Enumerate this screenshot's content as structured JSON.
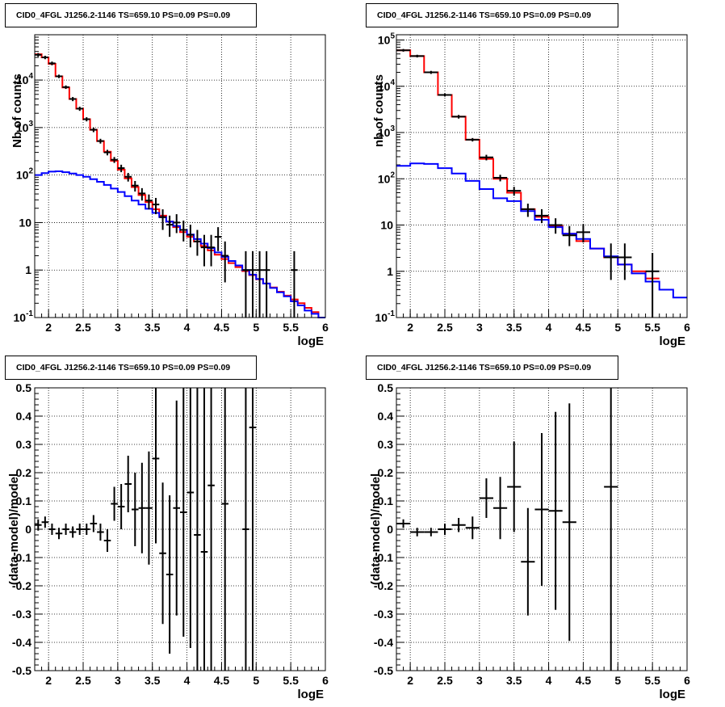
{
  "chart_data": [
    {
      "type": "line",
      "panel": "top-left",
      "title": "CID0_4FGL J1256.2-1146 TS=659.10 PS=0.09 PS=0.09",
      "xlabel": "logE",
      "ylabel": "Nb of counts",
      "xlim": [
        1.8,
        6.0
      ],
      "ylim": [
        0.1,
        90000
      ],
      "yscale": "log",
      "grid": true,
      "xticks": [
        "2",
        "2.5",
        "3",
        "3.5",
        "4",
        "4.5",
        "5",
        "5.5",
        "6"
      ],
      "yticks": [
        {
          "base": "10",
          "exp": "-1",
          "value": 0.1
        },
        {
          "base": "1",
          "exp": "",
          "value": 1
        },
        {
          "base": "10",
          "exp": "",
          "value": 10
        },
        {
          "base": "10",
          "exp": "2",
          "value": 100
        },
        {
          "base": "10",
          "exp": "3",
          "value": 1000
        },
        {
          "base": "10",
          "exp": "4",
          "value": 10000
        }
      ],
      "series": [
        {
          "color": "#ff0000",
          "step": true,
          "edges": [
            1.8,
            1.9,
            2.0,
            2.1,
            2.2,
            2.3,
            2.4,
            2.5,
            2.6,
            2.7,
            2.8,
            2.9,
            3.0,
            3.1,
            3.2,
            3.3,
            3.4,
            3.5,
            3.6,
            3.7,
            3.8,
            3.9,
            4.0,
            4.1,
            4.2,
            4.3,
            4.4,
            4.5,
            4.6,
            4.7,
            4.8,
            4.9,
            5.0,
            5.1,
            5.2,
            5.3,
            5.4,
            5.5,
            5.6,
            5.7,
            5.8,
            5.9,
            6.0
          ],
          "values": [
            35000,
            30000,
            22000,
            12000,
            7000,
            4000,
            2500,
            1500,
            900,
            520,
            310,
            200,
            130,
            85,
            56,
            38,
            27,
            19,
            14,
            10.5,
            8,
            6.3,
            5,
            4,
            3.2,
            2.6,
            2.1,
            1.7,
            1.4,
            1.15,
            0.95,
            0.78,
            0.64,
            0.52,
            0.43,
            0.35,
            0.29,
            0.24,
            0.2,
            0.16,
            0.13,
            0.1
          ]
        },
        {
          "color": "#0000ff",
          "step": true,
          "edges": [
            1.8,
            1.9,
            2.0,
            2.1,
            2.2,
            2.3,
            2.4,
            2.5,
            2.6,
            2.7,
            2.8,
            2.9,
            3.0,
            3.1,
            3.2,
            3.3,
            3.4,
            3.5,
            3.6,
            3.7,
            3.8,
            3.9,
            4.0,
            4.1,
            4.2,
            4.3,
            4.4,
            4.5,
            4.6,
            4.7,
            4.8,
            4.9,
            5.0,
            5.1,
            5.2,
            5.3,
            5.4,
            5.5,
            5.6,
            5.7,
            5.8,
            5.9,
            6.0
          ],
          "values": [
            100,
            110,
            118,
            120,
            115,
            108,
            100,
            92,
            82,
            72,
            62,
            52,
            44,
            36,
            29,
            24,
            19.5,
            16,
            13,
            10.5,
            8.5,
            7,
            5.6,
            4.5,
            3.6,
            2.9,
            2.35,
            1.9,
            1.55,
            1.25,
            1.0,
            0.8,
            0.65,
            0.52,
            0.42,
            0.34,
            0.28,
            0.22,
            0.18,
            0.14,
            0.12,
            0.1
          ]
        }
      ],
      "points": [
        {
          "x": 1.85,
          "y": 34000,
          "lo": 31000,
          "hi": 37000
        },
        {
          "x": 1.95,
          "y": 30000,
          "lo": 27500,
          "hi": 32500
        },
        {
          "x": 2.05,
          "y": 22500,
          "lo": 20500,
          "hi": 24500
        },
        {
          "x": 2.15,
          "y": 12000,
          "lo": 11000,
          "hi": 13000
        },
        {
          "x": 2.25,
          "y": 7100,
          "lo": 6500,
          "hi": 7700
        },
        {
          "x": 2.35,
          "y": 4000,
          "lo": 3600,
          "hi": 4400
        },
        {
          "x": 2.45,
          "y": 2500,
          "lo": 2250,
          "hi": 2750
        },
        {
          "x": 2.55,
          "y": 1500,
          "lo": 1350,
          "hi": 1650
        },
        {
          "x": 2.65,
          "y": 900,
          "lo": 800,
          "hi": 1000
        },
        {
          "x": 2.75,
          "y": 520,
          "lo": 460,
          "hi": 580
        },
        {
          "x": 2.85,
          "y": 300,
          "lo": 260,
          "hi": 340
        },
        {
          "x": 2.95,
          "y": 210,
          "lo": 180,
          "hi": 240
        },
        {
          "x": 3.05,
          "y": 140,
          "lo": 115,
          "hi": 165
        },
        {
          "x": 3.15,
          "y": 92,
          "lo": 73,
          "hi": 111
        },
        {
          "x": 3.25,
          "y": 60,
          "lo": 45,
          "hi": 75
        },
        {
          "x": 3.35,
          "y": 41,
          "lo": 29,
          "hi": 53
        },
        {
          "x": 3.45,
          "y": 29,
          "lo": 19,
          "hi": 39
        },
        {
          "x": 3.55,
          "y": 24,
          "lo": 15,
          "hi": 33
        },
        {
          "x": 3.65,
          "y": 13,
          "lo": 7,
          "hi": 19
        },
        {
          "x": 3.75,
          "y": 9,
          "lo": 5,
          "hi": 14
        },
        {
          "x": 3.85,
          "y": 10,
          "lo": 6,
          "hi": 15
        },
        {
          "x": 3.95,
          "y": 7,
          "lo": 4,
          "hi": 11
        },
        {
          "x": 4.05,
          "y": 5.5,
          "lo": 3,
          "hi": 9
        },
        {
          "x": 4.15,
          "y": 4,
          "lo": 2,
          "hi": 7
        },
        {
          "x": 4.25,
          "y": 3,
          "lo": 1.2,
          "hi": 5.5
        },
        {
          "x": 4.35,
          "y": 3,
          "lo": 1.2,
          "hi": 5.5
        },
        {
          "x": 4.45,
          "y": 5,
          "lo": 2.5,
          "hi": 8
        },
        {
          "x": 4.55,
          "y": 2,
          "lo": 0.55,
          "hi": 4
        },
        {
          "x": 4.85,
          "y": 1,
          "lo": 0.1,
          "hi": 2.5
        },
        {
          "x": 4.95,
          "y": 1,
          "lo": 0.1,
          "hi": 2.5
        },
        {
          "x": 5.05,
          "y": 1,
          "lo": 0.1,
          "hi": 2.5
        },
        {
          "x": 5.15,
          "y": 1,
          "lo": 0.1,
          "hi": 2.5
        },
        {
          "x": 5.55,
          "y": 1,
          "lo": 0.1,
          "hi": 2.5
        }
      ]
    },
    {
      "type": "line",
      "panel": "top-right",
      "title": "CID0_4FGL J1256.2-1146 TS=659.10 PS=0.09 PS=0.09",
      "xlabel": "logE",
      "ylabel": "nb of counts",
      "xlim": [
        1.8,
        6.0
      ],
      "ylim": [
        0.1,
        130000
      ],
      "yscale": "log",
      "grid": true,
      "xticks": [
        "2",
        "2.5",
        "3",
        "3.5",
        "4",
        "4.5",
        "5",
        "5.5",
        "6"
      ],
      "yticks": [
        {
          "base": "10",
          "exp": "-1",
          "value": 0.1
        },
        {
          "base": "1",
          "exp": "",
          "value": 1
        },
        {
          "base": "10",
          "exp": "",
          "value": 10
        },
        {
          "base": "10",
          "exp": "2",
          "value": 100
        },
        {
          "base": "10",
          "exp": "3",
          "value": 1000
        },
        {
          "base": "10",
          "exp": "4",
          "value": 10000
        },
        {
          "base": "10",
          "exp": "5",
          "value": 100000
        }
      ],
      "series": [
        {
          "color": "#ff0000",
          "step": true,
          "edges": [
            1.8,
            2.0,
            2.2,
            2.4,
            2.6,
            2.8,
            3.0,
            3.2,
            3.4,
            3.6,
            3.8,
            4.0,
            4.2,
            4.4,
            4.6,
            4.8,
            5.0,
            5.2,
            5.4,
            5.6,
            5.8,
            6.0
          ],
          "values": [
            60000,
            45000,
            20000,
            6500,
            2200,
            700,
            270,
            100,
            50,
            22,
            15,
            9.5,
            6.5,
            4.5,
            3.1,
            2.0,
            1.4,
            1.0,
            0.7,
            0.45,
            0.25
          ],
          "stop": 5.6
        },
        {
          "color": "#0000ff",
          "step": true,
          "edges": [
            1.8,
            2.0,
            2.2,
            2.4,
            2.6,
            2.8,
            3.0,
            3.2,
            3.4,
            3.6,
            3.8,
            4.0,
            4.2,
            4.4,
            4.6,
            4.8,
            5.0,
            5.2,
            5.4,
            5.6,
            5.8,
            6.0
          ],
          "values": [
            190,
            215,
            210,
            170,
            130,
            90,
            60,
            38,
            33,
            20,
            13,
            9,
            6.5,
            5,
            3.1,
            2.1,
            1.4,
            0.9,
            0.6,
            0.4,
            0.27
          ]
        }
      ],
      "points": [
        {
          "x": 1.9,
          "y": 60000,
          "lo": 56000,
          "hi": 64000
        },
        {
          "x": 2.1,
          "y": 45000,
          "lo": 42000,
          "hi": 48000
        },
        {
          "x": 2.3,
          "y": 20000,
          "lo": 18500,
          "hi": 21500
        },
        {
          "x": 2.5,
          "y": 6500,
          "lo": 6000,
          "hi": 7000
        },
        {
          "x": 2.7,
          "y": 2200,
          "lo": 2000,
          "hi": 2400
        },
        {
          "x": 2.9,
          "y": 700,
          "lo": 640,
          "hi": 760
        },
        {
          "x": 3.1,
          "y": 290,
          "lo": 250,
          "hi": 330
        },
        {
          "x": 3.3,
          "y": 105,
          "lo": 88,
          "hi": 122
        },
        {
          "x": 3.5,
          "y": 55,
          "lo": 43,
          "hi": 67
        },
        {
          "x": 3.7,
          "y": 22,
          "lo": 15,
          "hi": 29
        },
        {
          "x": 3.9,
          "y": 16,
          "lo": 11,
          "hi": 22
        },
        {
          "x": 4.1,
          "y": 10,
          "lo": 6.5,
          "hi": 14
        },
        {
          "x": 4.3,
          "y": 6,
          "lo": 3.5,
          "hi": 9.5
        },
        {
          "x": 4.5,
          "y": 7,
          "lo": 4.2,
          "hi": 10.5
        },
        {
          "x": 4.9,
          "y": 2,
          "lo": 0.65,
          "hi": 4
        },
        {
          "x": 5.1,
          "y": 2,
          "lo": 0.65,
          "hi": 4
        },
        {
          "x": 5.5,
          "y": 1,
          "lo": 0.1,
          "hi": 2.5
        }
      ]
    },
    {
      "type": "scatter",
      "panel": "bottom-left",
      "title": "CID0_4FGL J1256.2-1146 TS=659.10 PS=0.09 PS=0.09",
      "xlabel": "logE",
      "ylabel": "(data-model)/model",
      "xlim": [
        1.8,
        6.0
      ],
      "ylim": [
        -0.5,
        0.5
      ],
      "grid": true,
      "xticks": [
        "2",
        "2.5",
        "3",
        "3.5",
        "4",
        "4.5",
        "5",
        "5.5",
        "6"
      ],
      "yticks": [
        "-0.5",
        "-0.4",
        "-0.3",
        "-0.2",
        "-0.1",
        "0",
        "0.1",
        "0.2",
        "0.3",
        "0.4",
        "0.5"
      ],
      "binwidth": 0.1,
      "points": [
        {
          "x": 1.85,
          "y": 0.015,
          "err": 0.02
        },
        {
          "x": 1.95,
          "y": 0.025,
          "err": 0.02
        },
        {
          "x": 2.05,
          "y": 0.0,
          "err": 0.02
        },
        {
          "x": 2.15,
          "y": -0.015,
          "err": 0.02
        },
        {
          "x": 2.25,
          "y": 0.0,
          "err": 0.02
        },
        {
          "x": 2.35,
          "y": -0.01,
          "err": 0.02
        },
        {
          "x": 2.45,
          "y": 0.0,
          "err": 0.02
        },
        {
          "x": 2.55,
          "y": 0.0,
          "err": 0.02
        },
        {
          "x": 2.65,
          "y": 0.02,
          "err": 0.03
        },
        {
          "x": 2.75,
          "y": -0.01,
          "err": 0.03
        },
        {
          "x": 2.85,
          "y": -0.04,
          "err": 0.04
        },
        {
          "x": 2.95,
          "y": 0.09,
          "err": 0.06
        },
        {
          "x": 3.05,
          "y": 0.08,
          "err": 0.08
        },
        {
          "x": 3.15,
          "y": 0.16,
          "err": 0.1
        },
        {
          "x": 3.25,
          "y": 0.07,
          "err": 0.13
        },
        {
          "x": 3.35,
          "y": 0.075,
          "err": 0.16
        },
        {
          "x": 3.45,
          "y": 0.075,
          "err": 0.2
        },
        {
          "x": 3.55,
          "y": 0.25,
          "err": 0.3
        },
        {
          "x": 3.65,
          "y": -0.085,
          "err": 0.25
        },
        {
          "x": 3.75,
          "y": -0.16,
          "err": 0.28
        },
        {
          "x": 3.85,
          "y": 0.075,
          "err": 0.38
        },
        {
          "x": 3.95,
          "y": 0.06,
          "err": 0.44
        },
        {
          "x": 4.05,
          "y": 0.13,
          "err": 0.55
        },
        {
          "x": 4.15,
          "y": -0.02,
          "err": 0.6
        },
        {
          "x": 4.25,
          "y": -0.08,
          "err": 0.6
        },
        {
          "x": 4.35,
          "y": 0.155,
          "err": 0.7
        },
        {
          "x": 4.55,
          "y": 0.09,
          "err": 0.9
        },
        {
          "x": 4.85,
          "y": 0.0,
          "err": 1.0
        },
        {
          "x": 4.95,
          "y": 0.36,
          "err": 1.0
        }
      ]
    },
    {
      "type": "scatter",
      "panel": "bottom-right",
      "title": "CID0_4FGL J1256.2-1146 TS=659.10 PS=0.09 PS=0.09",
      "xlabel": "logE",
      "ylabel": "(data-model)/model",
      "xlim": [
        1.8,
        6.0
      ],
      "ylim": [
        -0.5,
        0.5
      ],
      "grid": true,
      "xticks": [
        "2",
        "2.5",
        "3",
        "3.5",
        "4",
        "4.5",
        "5",
        "5.5",
        "6"
      ],
      "yticks": [
        "-0.5",
        "-0.4",
        "-0.3",
        "-0.2",
        "-0.1",
        "0",
        "0.1",
        "0.2",
        "0.3",
        "0.4",
        "0.5"
      ],
      "binwidth": 0.2,
      "points": [
        {
          "x": 1.9,
          "y": 0.02,
          "err": 0.015
        },
        {
          "x": 2.1,
          "y": -0.01,
          "err": 0.015
        },
        {
          "x": 2.3,
          "y": -0.01,
          "err": 0.015
        },
        {
          "x": 2.5,
          "y": 0.0,
          "err": 0.02
        },
        {
          "x": 2.7,
          "y": 0.015,
          "err": 0.025
        },
        {
          "x": 2.9,
          "y": 0.005,
          "err": 0.04
        },
        {
          "x": 3.1,
          "y": 0.11,
          "err": 0.07
        },
        {
          "x": 3.3,
          "y": 0.075,
          "err": 0.11
        },
        {
          "x": 3.5,
          "y": 0.15,
          "err": 0.16
        },
        {
          "x": 3.7,
          "y": -0.115,
          "err": 0.19
        },
        {
          "x": 3.9,
          "y": 0.07,
          "err": 0.27
        },
        {
          "x": 4.1,
          "y": 0.065,
          "err": 0.35
        },
        {
          "x": 4.3,
          "y": 0.025,
          "err": 0.42
        },
        {
          "x": 4.9,
          "y": 0.15,
          "err": 1.0
        }
      ]
    }
  ]
}
